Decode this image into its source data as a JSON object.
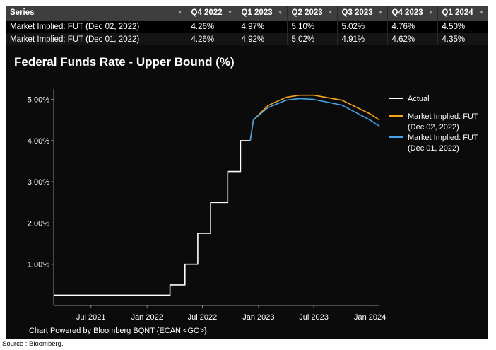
{
  "table": {
    "headers": [
      "Series",
      "Q4 2022",
      "Q1 2023",
      "Q2 2023",
      "Q3 2023",
      "Q4 2023",
      "Q1 2024"
    ],
    "rows": [
      {
        "series": "Market Implied: FUT (Dec 02, 2022)",
        "values": [
          "4.26%",
          "4.97%",
          "5.10%",
          "5.02%",
          "4.76%",
          "4.50%"
        ]
      },
      {
        "series": "Market Implied: FUT (Dec 01, 2022)",
        "values": [
          "4.26%",
          "4.92%",
          "5.02%",
          "4.91%",
          "4.62%",
          "4.35%"
        ]
      }
    ]
  },
  "footer": "Chart Powered by Bloomberg BQNT {ECAN <GO>}",
  "source": "Source : Bloomberg.",
  "chart_data": {
    "type": "line",
    "title": "Federal Funds Rate - Upper Bound (%)",
    "xlabel": "",
    "ylabel": "",
    "x_range": [
      "2021-03-01",
      "2024-02-01"
    ],
    "ylim": [
      0,
      5.25
    ],
    "y_ticks": [
      1,
      2,
      3,
      4,
      5
    ],
    "y_tick_labels": [
      "1.00%",
      "2.00%",
      "3.00%",
      "4.00%",
      "5.00%"
    ],
    "x_ticks": [
      "2021-07-01",
      "2022-01-01",
      "2022-07-01",
      "2023-01-01",
      "2023-07-01",
      "2024-01-01"
    ],
    "x_tick_labels": [
      "Jul 2021",
      "Jan 2022",
      "Jul 2022",
      "Jan 2023",
      "Jul 2023",
      "Jan 2024"
    ],
    "grid": false,
    "legend": "right",
    "series": [
      {
        "name": "Actual",
        "color": "#ffffff",
        "step": true,
        "points": [
          [
            "2021-03-01",
            0.25
          ],
          [
            "2022-03-17",
            0.5
          ],
          [
            "2022-05-05",
            1.0
          ],
          [
            "2022-06-16",
            1.75
          ],
          [
            "2022-07-28",
            2.5
          ],
          [
            "2022-09-22",
            3.25
          ],
          [
            "2022-11-03",
            4.0
          ],
          [
            "2022-12-05",
            4.0
          ]
        ]
      },
      {
        "name": "Market Implied: FUT\n(Dec 02, 2022)",
        "color": "#f5a31a",
        "step": false,
        "points": [
          [
            "2022-12-05",
            4.0
          ],
          [
            "2022-12-15",
            4.5
          ],
          [
            "2023-02-01",
            4.85
          ],
          [
            "2023-04-01",
            5.05
          ],
          [
            "2023-05-15",
            5.1
          ],
          [
            "2023-07-01",
            5.1
          ],
          [
            "2023-10-01",
            4.98
          ],
          [
            "2024-01-01",
            4.65
          ],
          [
            "2024-02-01",
            4.5
          ]
        ]
      },
      {
        "name": "Market Implied: FUT\n(Dec 01, 2022)",
        "color": "#4aa3e8",
        "step": false,
        "points": [
          [
            "2022-12-05",
            4.0
          ],
          [
            "2022-12-15",
            4.5
          ],
          [
            "2023-02-01",
            4.8
          ],
          [
            "2023-04-01",
            4.98
          ],
          [
            "2023-05-15",
            5.02
          ],
          [
            "2023-07-01",
            5.0
          ],
          [
            "2023-10-01",
            4.86
          ],
          [
            "2024-01-01",
            4.5
          ],
          [
            "2024-02-01",
            4.35
          ]
        ]
      }
    ]
  }
}
